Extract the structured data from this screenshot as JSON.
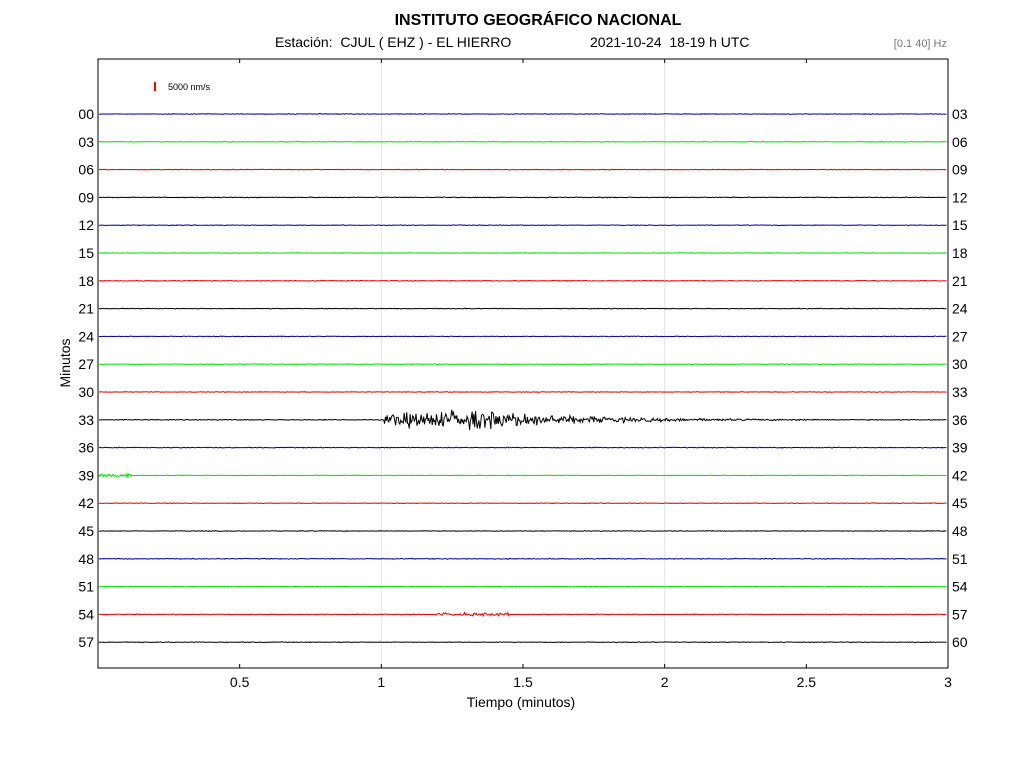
{
  "header": {
    "title": "INSTITUTO GEOGRÁFICO NACIONAL",
    "station_line": "Estación:  CJUL ( EHZ ) - EL HIERRO",
    "datetime_line": "2021-10-24  18-19 h UTC",
    "filter": "[0.1 40] Hz"
  },
  "scale_bar": {
    "label": "5000 nm/s",
    "color": "#ff0000"
  },
  "colors": {
    "blue": "#0000a0",
    "green": "#00e000",
    "red": "#e00000",
    "black": "#000000"
  },
  "chart_data": {
    "type": "line",
    "title": "INSTITUTO GEOGRÁFICO NACIONAL",
    "xlabel": "Tiempo (minutos)",
    "ylabel": "Minutos",
    "xlim": [
      0,
      3
    ],
    "x_ticks": [
      0.5,
      1,
      1.5,
      2,
      2.5,
      3
    ],
    "x_tick_labels": [
      "0.5",
      "1",
      "1.5",
      "2",
      "2.5",
      "3"
    ],
    "grid_x": [
      1,
      2
    ],
    "traces": [
      {
        "left": "00",
        "right": "03",
        "color": "blue",
        "noise": 0.5
      },
      {
        "left": "03",
        "right": "06",
        "color": "green",
        "noise": 0.5
      },
      {
        "left": "06",
        "right": "09",
        "color": "red",
        "noise": 0.5
      },
      {
        "left": "09",
        "right": "12",
        "color": "black",
        "noise": 0.6
      },
      {
        "left": "12",
        "right": "15",
        "color": "blue",
        "noise": 0.5
      },
      {
        "left": "15",
        "right": "18",
        "color": "green",
        "noise": 0.5
      },
      {
        "left": "18",
        "right": "21",
        "color": "red",
        "noise": 0.6
      },
      {
        "left": "21",
        "right": "24",
        "color": "black",
        "noise": 0.5
      },
      {
        "left": "24",
        "right": "27",
        "color": "blue",
        "noise": 0.5
      },
      {
        "left": "27",
        "right": "30",
        "color": "green",
        "noise": 0.5
      },
      {
        "left": "30",
        "right": "33",
        "color": "red",
        "noise": 0.5
      },
      {
        "left": "33",
        "right": "36",
        "color": "black",
        "noise": 0.6,
        "event": {
          "start": 1.01,
          "peak": 1.35,
          "end": 2.55,
          "amplitude": 14
        }
      },
      {
        "left": "36",
        "right": "39",
        "color": "blue",
        "noise": 0.6
      },
      {
        "left": "39",
        "right": "42",
        "color": "green",
        "noise": 0.5,
        "burst": [
          0.0,
          0.12,
          2.0
        ]
      },
      {
        "left": "42",
        "right": "45",
        "color": "red",
        "noise": 0.5
      },
      {
        "left": "45",
        "right": "48",
        "color": "black",
        "noise": 0.5
      },
      {
        "left": "48",
        "right": "51",
        "color": "blue",
        "noise": 0.6
      },
      {
        "left": "51",
        "right": "54",
        "color": "green",
        "noise": 0.5
      },
      {
        "left": "54",
        "right": "57",
        "color": "red",
        "noise": 0.6,
        "burst": [
          1.2,
          1.45,
          1.6
        ]
      },
      {
        "left": "57",
        "right": "60",
        "color": "black",
        "noise": 0.5
      }
    ]
  }
}
